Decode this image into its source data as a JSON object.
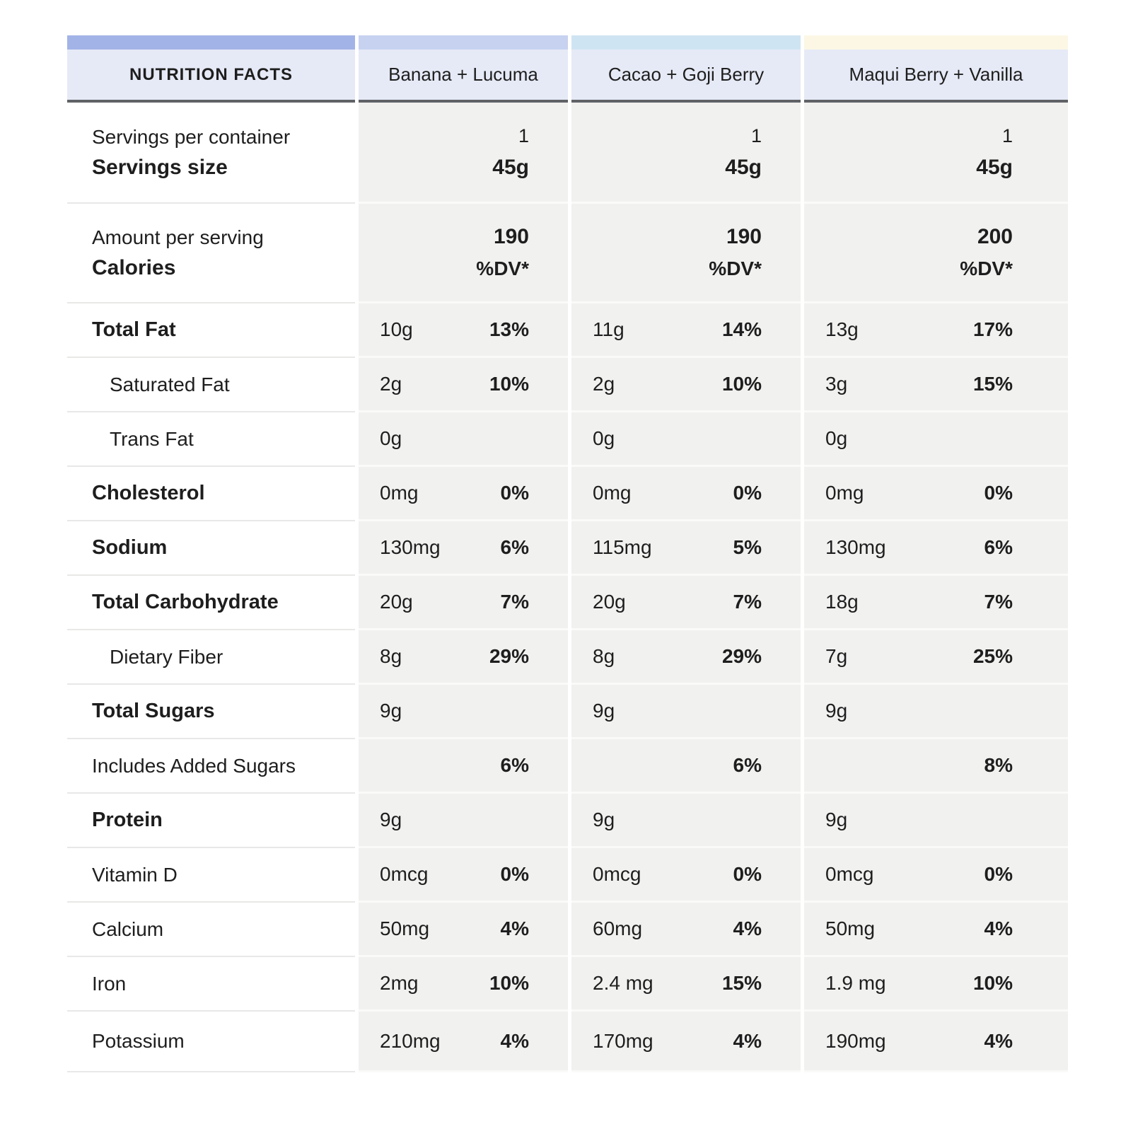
{
  "strips": [
    {
      "column": "nutrition-facts",
      "color": "#a2b3e7"
    },
    {
      "column": "banana-lucuma",
      "color": "#c7d2f0"
    },
    {
      "column": "cacao-goji-berry",
      "color": "#cfe4f3"
    },
    {
      "column": "maqui-berry-vanilla",
      "color": "#fcf7e5"
    }
  ],
  "header": {
    "title": "NUTRITION FACTS",
    "products": [
      {
        "name": "Banana + Lucuma"
      },
      {
        "name": "Cacao + Goji Berry"
      },
      {
        "name": "Maqui Berry + Vanilla"
      }
    ]
  },
  "serving_row": {
    "label_top": "Servings per container",
    "label_bottom": "Servings size",
    "values": [
      {
        "count": "1",
        "size": "45g"
      },
      {
        "count": "1",
        "size": "45g"
      },
      {
        "count": "1",
        "size": "45g"
      }
    ]
  },
  "calories_row": {
    "label_top": "Amount per serving",
    "label_bottom": "Calories",
    "values": [
      {
        "calories": "190",
        "dv_label": "%DV*"
      },
      {
        "calories": "190",
        "dv_label": "%DV*"
      },
      {
        "calories": "200",
        "dv_label": "%DV*"
      }
    ]
  },
  "rows": [
    {
      "label": "Total Fat",
      "bold": true,
      "indent": false,
      "values": [
        {
          "amount": "10g",
          "dv": "13%"
        },
        {
          "amount": "11g",
          "dv": "14%"
        },
        {
          "amount": "13g",
          "dv": "17%"
        }
      ]
    },
    {
      "label": "Saturated Fat",
      "bold": false,
      "indent": true,
      "values": [
        {
          "amount": "2g",
          "dv": "10%"
        },
        {
          "amount": "2g",
          "dv": "10%"
        },
        {
          "amount": "3g",
          "dv": "15%"
        }
      ]
    },
    {
      "label": "Trans Fat",
      "bold": false,
      "indent": true,
      "values": [
        {
          "amount": "0g",
          "dv": ""
        },
        {
          "amount": "0g",
          "dv": ""
        },
        {
          "amount": "0g",
          "dv": ""
        }
      ]
    },
    {
      "label": "Cholesterol",
      "bold": true,
      "indent": false,
      "values": [
        {
          "amount": "0mg",
          "dv": "0%"
        },
        {
          "amount": "0mg",
          "dv": "0%"
        },
        {
          "amount": "0mg",
          "dv": "0%"
        }
      ]
    },
    {
      "label": "Sodium",
      "bold": true,
      "indent": false,
      "values": [
        {
          "amount": "130mg",
          "dv": "6%"
        },
        {
          "amount": "115mg",
          "dv": "5%"
        },
        {
          "amount": "130mg",
          "dv": "6%"
        }
      ]
    },
    {
      "label": "Total Carbohydrate",
      "bold": true,
      "indent": false,
      "values": [
        {
          "amount": "20g",
          "dv": "7%"
        },
        {
          "amount": "20g",
          "dv": "7%"
        },
        {
          "amount": "18g",
          "dv": "7%"
        }
      ]
    },
    {
      "label": "Dietary Fiber",
      "bold": false,
      "indent": true,
      "values": [
        {
          "amount": "8g",
          "dv": "29%"
        },
        {
          "amount": "8g",
          "dv": "29%"
        },
        {
          "amount": "7g",
          "dv": "25%"
        }
      ]
    },
    {
      "label": "Total Sugars",
      "bold": true,
      "indent": false,
      "values": [
        {
          "amount": "9g",
          "dv": ""
        },
        {
          "amount": "9g",
          "dv": ""
        },
        {
          "amount": "9g",
          "dv": ""
        }
      ]
    },
    {
      "label": "Includes Added Sugars",
      "bold": false,
      "indent": false,
      "values": [
        {
          "amount": "",
          "dv": "6%"
        },
        {
          "amount": "",
          "dv": "6%"
        },
        {
          "amount": "",
          "dv": "8%"
        }
      ]
    },
    {
      "label": "Protein",
      "bold": true,
      "indent": false,
      "values": [
        {
          "amount": "9g",
          "dv": ""
        },
        {
          "amount": "9g",
          "dv": ""
        },
        {
          "amount": "9g",
          "dv": ""
        }
      ]
    },
    {
      "label": "Vitamin D",
      "bold": false,
      "indent": false,
      "values": [
        {
          "amount": "0mcg",
          "dv": "0%"
        },
        {
          "amount": "0mcg",
          "dv": "0%"
        },
        {
          "amount": "0mcg",
          "dv": "0%"
        }
      ]
    },
    {
      "label": "Calcium",
      "bold": false,
      "indent": false,
      "values": [
        {
          "amount": "50mg",
          "dv": "4%"
        },
        {
          "amount": "60mg",
          "dv": "4%"
        },
        {
          "amount": "50mg",
          "dv": "4%"
        }
      ]
    },
    {
      "label": "Iron",
      "bold": false,
      "indent": false,
      "values": [
        {
          "amount": "2mg",
          "dv": "10%"
        },
        {
          "amount": "2.4 mg",
          "dv": "15%"
        },
        {
          "amount": "1.9 mg",
          "dv": "10%"
        }
      ]
    },
    {
      "label": "Potassium",
      "bold": false,
      "indent": false,
      "values": [
        {
          "amount": "210mg",
          "dv": "4%"
        },
        {
          "amount": "170mg",
          "dv": "4%"
        },
        {
          "amount": "190mg",
          "dv": "4%"
        }
      ]
    }
  ]
}
